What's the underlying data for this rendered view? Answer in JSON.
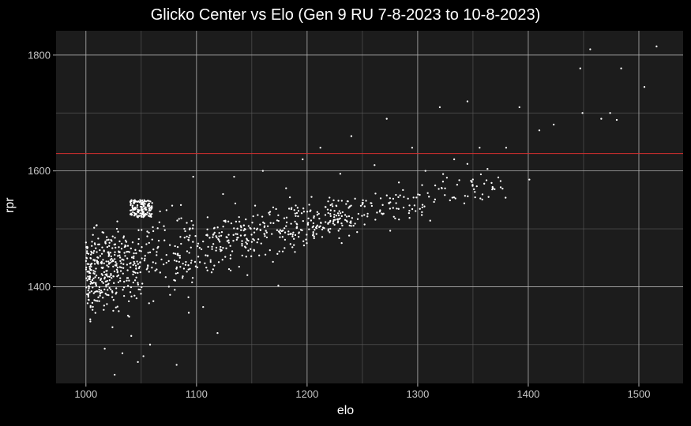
{
  "chart_data": {
    "type": "scatter",
    "title": "Glicko Center vs Elo (Gen 9 RU 7-8-2023 to 10-8-2023)",
    "xlabel": "elo",
    "ylabel": "rpr",
    "xlim": [
      973,
      1540
    ],
    "ylim": [
      1233,
      1842
    ],
    "xticks": [
      1000,
      1100,
      1200,
      1300,
      1400,
      1500
    ],
    "yticks": [
      1400,
      1600,
      1800
    ],
    "reference_line": {
      "orientation": "horizontal",
      "y": 1630,
      "color": "#d32f2f"
    },
    "grid": true,
    "theme": {
      "background": "#000000",
      "panel": "#1c1c1c",
      "grid_major": "#b0b0b0",
      "grid_minor": "#5a5a5a",
      "point_color": "#ffffff",
      "text": "#ffffff",
      "tick_text": "#c8c8c8"
    },
    "points_note_values": [
      [
        1003,
        1400
      ],
      [
        1004,
        1340
      ],
      [
        1006,
        1360
      ],
      [
        1008,
        1475
      ],
      [
        1010,
        1445
      ],
      [
        1012,
        1375
      ],
      [
        1015,
        1420
      ],
      [
        1017,
        1293
      ],
      [
        1019,
        1370
      ],
      [
        1021,
        1455
      ],
      [
        1024,
        1330
      ],
      [
        1026,
        1248
      ],
      [
        1028,
        1500
      ],
      [
        1031,
        1410
      ],
      [
        1033,
        1285
      ],
      [
        1036,
        1470
      ],
      [
        1038,
        1350
      ],
      [
        1041,
        1315
      ],
      [
        1044,
        1440
      ],
      [
        1047,
        1270
      ],
      [
        1049,
        1395
      ],
      [
        1052,
        1280
      ],
      [
        1055,
        1430
      ],
      [
        1058,
        1300
      ],
      [
        1061,
        1375
      ],
      [
        1064,
        1460
      ],
      [
        1067,
        1530
      ],
      [
        1071,
        1480
      ],
      [
        1075,
        1400
      ],
      [
        1078,
        1540
      ],
      [
        1082,
        1265
      ],
      [
        1085,
        1450
      ],
      [
        1089,
        1500
      ],
      [
        1093,
        1355
      ],
      [
        1097,
        1590
      ],
      [
        1101,
        1470
      ],
      [
        1106,
        1365
      ],
      [
        1110,
        1520
      ],
      [
        1115,
        1430
      ],
      [
        1119,
        1320
      ],
      [
        1124,
        1560
      ],
      [
        1129,
        1480
      ],
      [
        1134,
        1590
      ],
      [
        1140,
        1505
      ],
      [
        1146,
        1420
      ],
      [
        1153,
        1540
      ],
      [
        1160,
        1600
      ],
      [
        1167,
        1510
      ],
      [
        1174,
        1402
      ],
      [
        1181,
        1570
      ],
      [
        1189,
        1460
      ],
      [
        1196,
        1620
      ],
      [
        1204,
        1555
      ],
      [
        1212,
        1640
      ],
      [
        1221,
        1500
      ],
      [
        1230,
        1595
      ],
      [
        1240,
        1660
      ],
      [
        1250,
        1545
      ],
      [
        1261,
        1610
      ],
      [
        1272,
        1690
      ],
      [
        1283,
        1580
      ],
      [
        1295,
        1640
      ],
      [
        1307,
        1600
      ],
      [
        1320,
        1710
      ],
      [
        1333,
        1620
      ],
      [
        1345,
        1720
      ],
      [
        1356,
        1640
      ],
      [
        1368,
        1570
      ],
      [
        1380,
        1640
      ],
      [
        1392,
        1710
      ],
      [
        1401,
        1585
      ],
      [
        1410,
        1670
      ],
      [
        1423,
        1680
      ],
      [
        1447,
        1777
      ],
      [
        1449,
        1700
      ],
      [
        1456,
        1810
      ],
      [
        1466,
        1690
      ],
      [
        1474,
        1700
      ],
      [
        1480,
        1688
      ],
      [
        1484,
        1777
      ],
      [
        1505,
        1745
      ],
      [
        1516,
        1815
      ]
    ]
  }
}
